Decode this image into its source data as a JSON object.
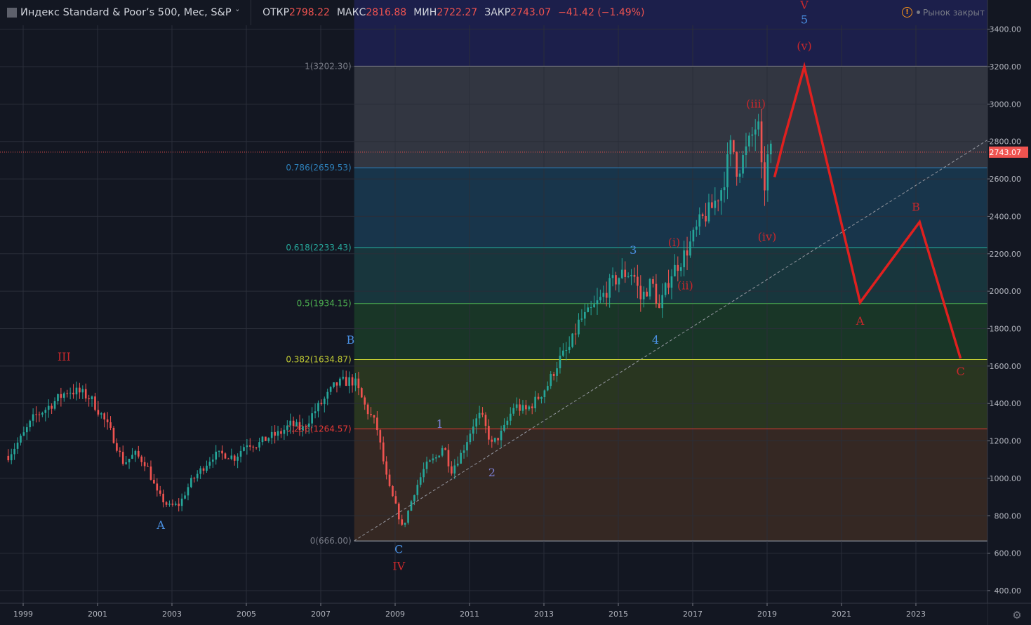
{
  "header": {
    "symbol": "Индекс Standard & Poor’s 500, Мес, S&P",
    "chevron": "˅",
    "ohlc": [
      {
        "key": "ОТКР",
        "value": "2798.22"
      },
      {
        "key": "МАКС",
        "value": "2816.88"
      },
      {
        "key": "МИН",
        "value": "2722.27"
      },
      {
        "key": "ЗАКР",
        "value": "2743.07"
      }
    ],
    "change": "−41.42 (−1.49%)",
    "market_status": "Рынок закрыт",
    "status_icon": "!"
  },
  "colors": {
    "background": "#131722",
    "grid": "#2a2e39",
    "up": "#26a69a",
    "down": "#ef5350",
    "forecast": "#e0201f",
    "wave_red": "#c8282c",
    "wave_blue": "#4a90e2",
    "wave_purple": "#7b7fd4"
  },
  "chart_data": {
    "type": "candlestick",
    "title": "Индекс Standard & Poor’s 500, Мес, S&P",
    "ylim": [
      350,
      3550
    ],
    "xlim": [
      1998.6,
      2025.1
    ],
    "x_ticks": [
      "1999",
      "2001",
      "2003",
      "2005",
      "2007",
      "2009",
      "2011",
      "2013",
      "2015",
      "2017",
      "2019",
      "2021",
      "2023"
    ],
    "y_ticks": [
      "3400.00",
      "3200.00",
      "3000.00",
      "2800.00",
      "2600.00",
      "2400.00",
      "2200.00",
      "2000.00",
      "1800.00",
      "1600.00",
      "1400.00",
      "1200.00",
      "1000.00",
      "800.00",
      "600.00",
      "400.00"
    ],
    "last_price": {
      "value": 2743.07,
      "label": "2743.07"
    },
    "price_path": [
      [
        1998.6,
        1120
      ],
      [
        1999.0,
        1230
      ],
      [
        1999.3,
        1330
      ],
      [
        1999.6,
        1370
      ],
      [
        1999.9,
        1420
      ],
      [
        2000.2,
        1470
      ],
      [
        2000.5,
        1460
      ],
      [
        2000.8,
        1430
      ],
      [
        2001.1,
        1340
      ],
      [
        2001.4,
        1230
      ],
      [
        2001.7,
        1080
      ],
      [
        2002.0,
        1130
      ],
      [
        2002.3,
        1080
      ],
      [
        2002.6,
        920
      ],
      [
        2002.9,
        850
      ],
      [
        2003.2,
        860
      ],
      [
        2003.5,
        980
      ],
      [
        2003.8,
        1050
      ],
      [
        2004.1,
        1120
      ],
      [
        2004.4,
        1130
      ],
      [
        2004.7,
        1110
      ],
      [
        2005.0,
        1190
      ],
      [
        2005.3,
        1180
      ],
      [
        2005.6,
        1220
      ],
      [
        2005.9,
        1240
      ],
      [
        2006.2,
        1290
      ],
      [
        2006.5,
        1260
      ],
      [
        2006.8,
        1350
      ],
      [
        2007.1,
        1420
      ],
      [
        2007.4,
        1500
      ],
      [
        2007.7,
        1520
      ],
      [
        2007.9,
        1520
      ],
      [
        2008.2,
        1380
      ],
      [
        2008.5,
        1280
      ],
      [
        2008.8,
        970
      ],
      [
        2009.0,
        860
      ],
      [
        2009.2,
        730
      ],
      [
        2009.5,
        920
      ],
      [
        2009.8,
        1060
      ],
      [
        2010.1,
        1110
      ],
      [
        2010.3,
        1180
      ],
      [
        2010.5,
        1040
      ],
      [
        2010.8,
        1140
      ],
      [
        2011.1,
        1290
      ],
      [
        2011.3,
        1340
      ],
      [
        2011.6,
        1180
      ],
      [
        2011.9,
        1250
      ],
      [
        2012.2,
        1390
      ],
      [
        2012.5,
        1360
      ],
      [
        2012.8,
        1420
      ],
      [
        2013.1,
        1500
      ],
      [
        2013.4,
        1630
      ],
      [
        2013.7,
        1700
      ],
      [
        2013.95,
        1840
      ],
      [
        2014.2,
        1880
      ],
      [
        2014.5,
        1950
      ],
      [
        2014.8,
        2040
      ],
      [
        2015.1,
        2090
      ],
      [
        2015.4,
        2100
      ],
      [
        2015.6,
        1960
      ],
      [
        2015.9,
        2050
      ],
      [
        2016.1,
        1900
      ],
      [
        2016.4,
        2090
      ],
      [
        2016.7,
        2170
      ],
      [
        2016.9,
        2240
      ],
      [
        2017.2,
        2370
      ],
      [
        2017.5,
        2440
      ],
      [
        2017.8,
        2560
      ],
      [
        2018.05,
        2800
      ],
      [
        2018.2,
        2640
      ],
      [
        2018.5,
        2780
      ],
      [
        2018.75,
        2910
      ],
      [
        2018.9,
        2500
      ],
      [
        2019.0,
        2700
      ],
      [
        2019.1,
        2743
      ]
    ],
    "fib_levels": [
      {
        "ratio": "1",
        "value": 3202.3,
        "label": "1(3202.30)",
        "line_color": "#787b86",
        "fill": "#363a45"
      },
      {
        "ratio": "0.786",
        "value": 2659.53,
        "label": "0.786(2659.53)",
        "line_color": "#2d7fb8",
        "fill": "#1a3850"
      },
      {
        "ratio": "0.618",
        "value": 2233.43,
        "label": "0.618(2233.43)",
        "line_color": "#26a69a",
        "fill": "#1a3a40"
      },
      {
        "ratio": "0.5",
        "value": 1934.15,
        "label": "0.5(1934.15)",
        "line_color": "#4caf50",
        "fill": "#1b3a28"
      },
      {
        "ratio": "0.382",
        "value": 1634.87,
        "label": "0.382(1634.87)",
        "line_color": "#c0ca33",
        "fill": "#2c3a20"
      },
      {
        "ratio": "0.236",
        "value": 1264.57,
        "label": "0.236(1264.57)",
        "line_color": "#e53935",
        "fill": "#3a2a24"
      },
      {
        "ratio": "0",
        "value": 666.0,
        "label": "0(666.00)",
        "line_color": "#787b86",
        "fill": "#3a2228"
      }
    ],
    "fib_top_fill": "#1e2152",
    "fib_x_start": 2007.9,
    "trendline": [
      [
        2007.9,
        666
      ],
      [
        2025.1,
        2830
      ]
    ],
    "forecast_path": [
      [
        2019.2,
        2610
      ],
      [
        2019.45,
        2810
      ],
      [
        2020.0,
        3200
      ],
      [
        2021.5,
        1940
      ],
      [
        2023.1,
        2370
      ],
      [
        2024.2,
        1640
      ]
    ],
    "wave_labels": [
      {
        "text": "III",
        "x": 2000.1,
        "y": 1630,
        "color": "wave_red"
      },
      {
        "text": "A",
        "x": 2002.7,
        "y": 730,
        "color": "wave_blue"
      },
      {
        "text": "B",
        "x": 2007.8,
        "y": 1720,
        "color": "wave_blue"
      },
      {
        "text": "C",
        "x": 2009.1,
        "y": 600,
        "color": "wave_blue"
      },
      {
        "text": "IV",
        "x": 2009.1,
        "y": 510,
        "color": "wave_red"
      },
      {
        "text": "1",
        "x": 2010.2,
        "y": 1270,
        "color": "wave_purple"
      },
      {
        "text": "2",
        "x": 2011.6,
        "y": 1010,
        "color": "wave_purple"
      },
      {
        "text": "3",
        "x": 2015.4,
        "y": 2200,
        "color": "wave_blue"
      },
      {
        "text": "4",
        "x": 2016.0,
        "y": 1720,
        "color": "wave_blue"
      },
      {
        "text": "(i)",
        "x": 2016.5,
        "y": 2240,
        "color": "wave_red"
      },
      {
        "text": "(ii)",
        "x": 2016.8,
        "y": 2010,
        "color": "wave_red"
      },
      {
        "text": "(iii)",
        "x": 2018.7,
        "y": 2980,
        "color": "wave_red"
      },
      {
        "text": "(iv)",
        "x": 2019.0,
        "y": 2270,
        "color": "wave_red"
      },
      {
        "text": "(v)",
        "x": 2020.0,
        "y": 3290,
        "color": "wave_red"
      },
      {
        "text": "5",
        "x": 2020.0,
        "y": 3430,
        "color": "wave_blue"
      },
      {
        "text": "V",
        "x": 2020.0,
        "y": 3510,
        "color": "wave_red"
      },
      {
        "text": "A",
        "x": 2021.5,
        "y": 1820,
        "color": "wave_red"
      },
      {
        "text": "B",
        "x": 2023.0,
        "y": 2430,
        "color": "wave_red"
      },
      {
        "text": "C",
        "x": 2024.2,
        "y": 1550,
        "color": "wave_red"
      }
    ]
  }
}
